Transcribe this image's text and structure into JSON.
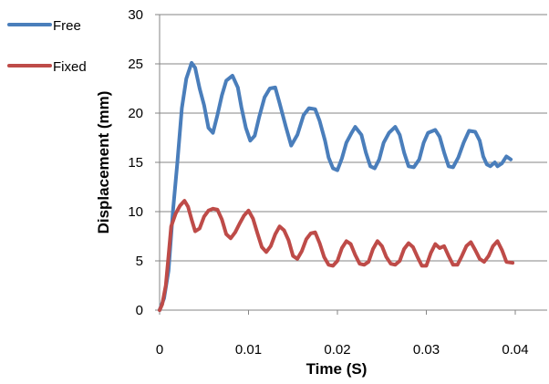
{
  "chart_data": {
    "type": "line",
    "title": "",
    "xlabel": "Time (S)",
    "ylabel": "Displacement (mm)",
    "xlim": [
      0,
      0.04
    ],
    "ylim": [
      0,
      30
    ],
    "x_ticks": [
      "0",
      "0.01",
      "0.02",
      "0.03",
      "0.04"
    ],
    "y_ticks": [
      "0",
      "5",
      "10",
      "15",
      "20",
      "25",
      "30"
    ],
    "grid": "horizontal",
    "legend_position": "top-left",
    "series": [
      {
        "name": "Free",
        "color": "#4A7EBB",
        "points": [
          [
            0,
            0
          ],
          [
            0.0005,
            1.2
          ],
          [
            0.001,
            4
          ],
          [
            0.0015,
            10
          ],
          [
            0.002,
            15
          ],
          [
            0.0025,
            20.5
          ],
          [
            0.003,
            23.5
          ],
          [
            0.0036,
            25.1
          ],
          [
            0.004,
            24.6
          ],
          [
            0.0045,
            22.5
          ],
          [
            0.005,
            20.8
          ],
          [
            0.0055,
            18.5
          ],
          [
            0.006,
            18
          ],
          [
            0.0065,
            19.8
          ],
          [
            0.007,
            21.8
          ],
          [
            0.0075,
            23.3
          ],
          [
            0.0082,
            23.8
          ],
          [
            0.0088,
            22.6
          ],
          [
            0.0092,
            20.6
          ],
          [
            0.0097,
            18.5
          ],
          [
            0.0102,
            17.2
          ],
          [
            0.0107,
            17.7
          ],
          [
            0.0112,
            19.6
          ],
          [
            0.0118,
            21.6
          ],
          [
            0.0124,
            22.5
          ],
          [
            0.013,
            22.6
          ],
          [
            0.0135,
            21
          ],
          [
            0.0142,
            18.6
          ],
          [
            0.0148,
            16.7
          ],
          [
            0.0155,
            17.8
          ],
          [
            0.0162,
            19.8
          ],
          [
            0.0168,
            20.5
          ],
          [
            0.0175,
            20.4
          ],
          [
            0.018,
            19.2
          ],
          [
            0.0186,
            17.2
          ],
          [
            0.019,
            15.5
          ],
          [
            0.0195,
            14.4
          ],
          [
            0.02,
            14.2
          ],
          [
            0.0205,
            15.4
          ],
          [
            0.021,
            17
          ],
          [
            0.0216,
            18
          ],
          [
            0.022,
            18.6
          ],
          [
            0.0227,
            17.8
          ],
          [
            0.0232,
            16
          ],
          [
            0.0237,
            14.6
          ],
          [
            0.0242,
            14.4
          ],
          [
            0.0247,
            15.3
          ],
          [
            0.0252,
            17
          ],
          [
            0.0258,
            18
          ],
          [
            0.0265,
            18.6
          ],
          [
            0.027,
            17.8
          ],
          [
            0.0275,
            16
          ],
          [
            0.028,
            14.6
          ],
          [
            0.0286,
            14.5
          ],
          [
            0.0292,
            15.3
          ],
          [
            0.0297,
            17
          ],
          [
            0.0302,
            18
          ],
          [
            0.031,
            18.3
          ],
          [
            0.0315,
            17.6
          ],
          [
            0.032,
            16
          ],
          [
            0.0325,
            14.6
          ],
          [
            0.033,
            14.5
          ],
          [
            0.0336,
            15.5
          ],
          [
            0.0342,
            17
          ],
          [
            0.0348,
            18.2
          ],
          [
            0.0355,
            18.1
          ],
          [
            0.036,
            17.2
          ],
          [
            0.0364,
            15.6
          ],
          [
            0.0368,
            14.8
          ],
          [
            0.0372,
            14.6
          ],
          [
            0.0377,
            15
          ],
          [
            0.038,
            14.6
          ],
          [
            0.0385,
            14.9
          ],
          [
            0.039,
            15.6
          ],
          [
            0.0395,
            15.3
          ]
        ]
      },
      {
        "name": "Fixed",
        "color": "#BE4B48",
        "points": [
          [
            0,
            0
          ],
          [
            0.0003,
            0.6
          ],
          [
            0.0007,
            2.5
          ],
          [
            0.001,
            5.5
          ],
          [
            0.0013,
            8.5
          ],
          [
            0.0018,
            9.8
          ],
          [
            0.0023,
            10.6
          ],
          [
            0.0028,
            11.1
          ],
          [
            0.0032,
            10.5
          ],
          [
            0.0036,
            9.2
          ],
          [
            0.004,
            8
          ],
          [
            0.0045,
            8.3
          ],
          [
            0.005,
            9.5
          ],
          [
            0.0055,
            10.1
          ],
          [
            0.006,
            10.3
          ],
          [
            0.0065,
            10.2
          ],
          [
            0.007,
            9.2
          ],
          [
            0.0075,
            7.7
          ],
          [
            0.008,
            7.3
          ],
          [
            0.0085,
            7.9
          ],
          [
            0.009,
            8.8
          ],
          [
            0.0095,
            9.6
          ],
          [
            0.01,
            10.1
          ],
          [
            0.0105,
            9.3
          ],
          [
            0.011,
            7.8
          ],
          [
            0.0115,
            6.4
          ],
          [
            0.012,
            5.9
          ],
          [
            0.0125,
            6.5
          ],
          [
            0.013,
            7.7
          ],
          [
            0.0135,
            8.5
          ],
          [
            0.014,
            8.1
          ],
          [
            0.0145,
            7.1
          ],
          [
            0.015,
            5.5
          ],
          [
            0.0155,
            5.2
          ],
          [
            0.016,
            6
          ],
          [
            0.0165,
            7.2
          ],
          [
            0.017,
            7.8
          ],
          [
            0.0175,
            7.9
          ],
          [
            0.018,
            6.8
          ],
          [
            0.0185,
            5.4
          ],
          [
            0.019,
            4.6
          ],
          [
            0.0195,
            4.5
          ],
          [
            0.02,
            5
          ],
          [
            0.0205,
            6.3
          ],
          [
            0.021,
            7
          ],
          [
            0.0215,
            6.7
          ],
          [
            0.022,
            5.6
          ],
          [
            0.0225,
            4.7
          ],
          [
            0.023,
            4.6
          ],
          [
            0.0235,
            4.9
          ],
          [
            0.024,
            6.2
          ],
          [
            0.0245,
            7
          ],
          [
            0.025,
            6.5
          ],
          [
            0.0255,
            5.4
          ],
          [
            0.026,
            4.7
          ],
          [
            0.0265,
            4.6
          ],
          [
            0.027,
            5
          ],
          [
            0.0275,
            6.2
          ],
          [
            0.028,
            6.8
          ],
          [
            0.0285,
            6.4
          ],
          [
            0.029,
            5.4
          ],
          [
            0.0295,
            4.5
          ],
          [
            0.03,
            4.5
          ],
          [
            0.0305,
            5.8
          ],
          [
            0.031,
            6.7
          ],
          [
            0.0315,
            6.3
          ],
          [
            0.032,
            6.5
          ],
          [
            0.0325,
            5.5
          ],
          [
            0.033,
            4.6
          ],
          [
            0.0335,
            4.6
          ],
          [
            0.034,
            5.5
          ],
          [
            0.0345,
            6.5
          ],
          [
            0.035,
            6.9
          ],
          [
            0.0355,
            6.1
          ],
          [
            0.036,
            5.2
          ],
          [
            0.0365,
            4.9
          ],
          [
            0.037,
            5.5
          ],
          [
            0.0375,
            6.5
          ],
          [
            0.038,
            7
          ],
          [
            0.0385,
            6.1
          ],
          [
            0.039,
            4.9
          ],
          [
            0.0397,
            4.8
          ]
        ]
      }
    ]
  }
}
